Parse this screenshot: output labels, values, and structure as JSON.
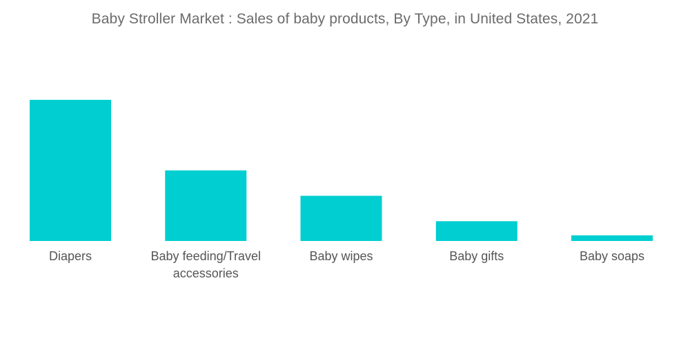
{
  "chart_data": {
    "type": "bar",
    "title": "Baby Stroller Market : Sales of baby products, By Type, in United States, 2021",
    "categories": [
      [
        "Diapers"
      ],
      [
        "Baby feeding/Travel",
        "accessories"
      ],
      [
        "Baby wipes"
      ],
      [
        "Baby gifts"
      ],
      [
        "Baby soaps"
      ]
    ],
    "values": [
      100,
      50,
      32,
      14,
      4
    ],
    "xlabel": "",
    "ylabel": "",
    "ylim": [
      0,
      100
    ],
    "grid": false,
    "legend": "none",
    "bar_color": "#00CED1"
  }
}
